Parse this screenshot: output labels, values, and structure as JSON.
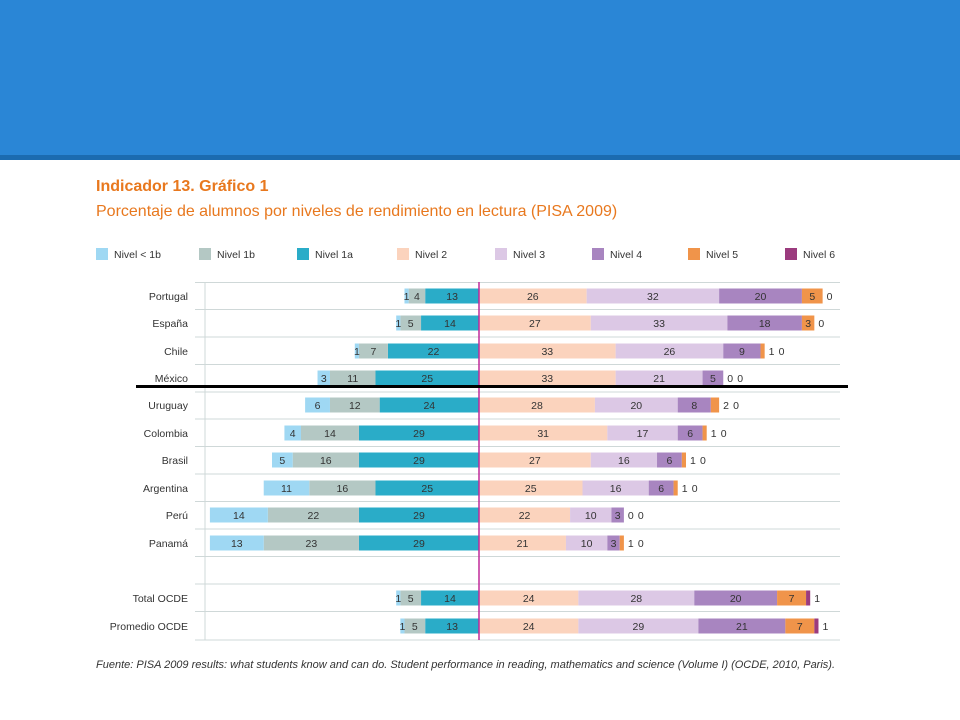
{
  "header": {
    "color": "#2a86d6"
  },
  "figure": {
    "title": "Indicador 13. Gráfico 1",
    "subtitle": "Porcentaje de alumnos por niveles de rendimiento en lectura (PISA 2009)",
    "source_note": "Fuente: PISA 2009 results: what students know and can do. Student performance in reading, mathematics and science (Volume I) (OCDE, 2010, Paris)."
  },
  "chart_data": {
    "type": "bar",
    "orientation": "horizontal-diverging",
    "title": "Porcentaje de alumnos por niveles de rendimiento en lectura (PISA 2009)",
    "legend_position": "top",
    "levels": [
      {
        "name": "Nivel < 1b",
        "color": "#9fd8f3",
        "side": "left"
      },
      {
        "name": "Nivel 1b",
        "color": "#b4c8c4",
        "side": "left"
      },
      {
        "name": "Nivel 1a",
        "color": "#2aacc8",
        "side": "left"
      },
      {
        "name": "Nivel 2",
        "color": "#fbd3bd",
        "side": "right"
      },
      {
        "name": "Nivel 3",
        "color": "#dcc8e5",
        "side": "right"
      },
      {
        "name": "Nivel 4",
        "color": "#a885c0",
        "side": "right"
      },
      {
        "name": "Nivel 5",
        "color": "#f0944a",
        "side": "right"
      },
      {
        "name": "Nivel 6",
        "color": "#9b3b7e",
        "side": "right"
      }
    ],
    "categories": [
      "Portugal",
      "España",
      "Chile",
      "México",
      "Uruguay",
      "Colombia",
      "Brasil",
      "Argentina",
      "Perú",
      "Panamá",
      "Total OCDE",
      "Promedio OCDE"
    ],
    "series": [
      {
        "name": "Nivel < 1b",
        "values": [
          1,
          1,
          1,
          3,
          6,
          4,
          5,
          11,
          14,
          13,
          1,
          1
        ]
      },
      {
        "name": "Nivel 1b",
        "values": [
          4,
          5,
          7,
          11,
          12,
          14,
          16,
          16,
          22,
          23,
          5,
          5
        ]
      },
      {
        "name": "Nivel 1a",
        "values": [
          13,
          14,
          22,
          25,
          24,
          29,
          29,
          25,
          29,
          29,
          14,
          13
        ]
      },
      {
        "name": "Nivel 2",
        "values": [
          26,
          27,
          33,
          33,
          28,
          31,
          27,
          25,
          22,
          21,
          24,
          24
        ]
      },
      {
        "name": "Nivel 3",
        "values": [
          32,
          33,
          26,
          21,
          20,
          17,
          16,
          16,
          10,
          10,
          28,
          29
        ]
      },
      {
        "name": "Nivel 4",
        "values": [
          20,
          18,
          9,
          5,
          8,
          6,
          6,
          6,
          3,
          3,
          20,
          21
        ]
      },
      {
        "name": "Nivel 5",
        "values": [
          5,
          3,
          1,
          0,
          2,
          1,
          1,
          1,
          0,
          1,
          7,
          7
        ]
      },
      {
        "name": "Nivel 6",
        "values": [
          0,
          0,
          0,
          0,
          0,
          0,
          0,
          0,
          0,
          0,
          1,
          1
        ]
      }
    ]
  }
}
